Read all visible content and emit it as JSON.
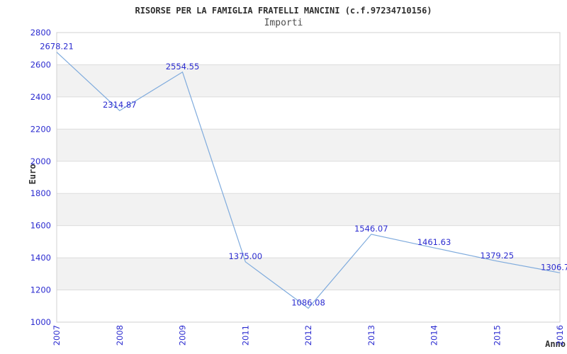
{
  "colors": {
    "line": "#7fabdd",
    "label_blue": "#2c2cd0",
    "band_gray": "#f2f2f2",
    "gridline": "#dcdcdc",
    "border": "#d0d0d0",
    "title_text": "#2e2e2e",
    "subtitle_text": "#4d4d4d",
    "axis_title_text": "#333333",
    "background": "#ffffff"
  },
  "chart_data": {
    "type": "line",
    "title": "RISORSE PER LA FAMIGLIA FRATELLI MANCINI (c.f.97234710156)",
    "subtitle": "Importi",
    "xlabel": "Anno",
    "ylabel": "Euro",
    "categories": [
      "2007",
      "2008",
      "2009",
      "2011",
      "2012",
      "2013",
      "2014",
      "2015",
      "2016"
    ],
    "values": [
      2678.21,
      2314.87,
      2554.55,
      1375.0,
      1086.08,
      1546.07,
      1461.63,
      1379.25,
      1306.7
    ],
    "point_labels": [
      "2678.21",
      "2314.87",
      "2554.55",
      "1375.00",
      "1086.08",
      "1546.07",
      "1461.63",
      "1379.25",
      "1306.7"
    ],
    "yticks": [
      2800,
      2600,
      2400,
      2200,
      2000,
      1800,
      1600,
      1400,
      1200,
      1000
    ],
    "ylim": [
      1000,
      2800
    ],
    "grid": "horizontal-bands-alternating",
    "legend": "none",
    "markers": "none"
  }
}
